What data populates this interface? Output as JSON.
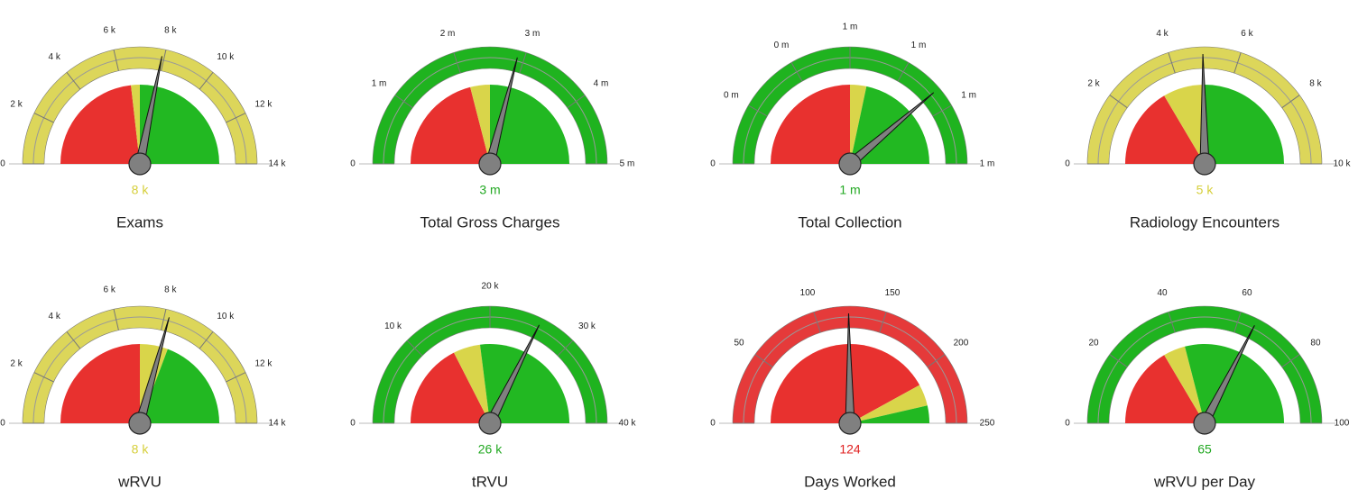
{
  "chart_data": [
    {
      "type": "gauge",
      "title": "Exams",
      "value": 7900,
      "value_label": "8 k",
      "value_color": "#d6cf3a",
      "band_color": "#dcd65a",
      "ylim": [
        0,
        14000
      ],
      "yticks": [
        0,
        {
          "value": 2000,
          "label": "2 k"
        },
        {
          "value": 4000,
          "label": "4 k"
        },
        {
          "value": 6000,
          "label": "6 k"
        },
        {
          "value": 8000,
          "label": "8 k"
        },
        {
          "value": 10000,
          "label": "10 k"
        },
        {
          "value": 12000,
          "label": "12 k"
        },
        {
          "value": 14000,
          "label": "14 k"
        }
      ],
      "zones": [
        {
          "color": "#e8312f",
          "to": 6500
        },
        {
          "color": "#d9d54a",
          "to": 7000
        },
        {
          "color": "#22b822",
          "to": 14000
        }
      ]
    },
    {
      "type": "gauge",
      "title": "Total Gross Charges",
      "value": 2900000,
      "value_label": "3 m",
      "value_color": "#22a822",
      "band_color": "#1fb31f",
      "ylim": [
        0,
        5000000
      ],
      "yticks": [
        0,
        {
          "value": 1000000,
          "label": "1 m"
        },
        {
          "value": 2000000,
          "label": "2 m"
        },
        {
          "value": 3000000,
          "label": "3 m"
        },
        {
          "value": 4000000,
          "label": "4 m"
        },
        {
          "value": 5000000,
          "label": "5 m"
        }
      ],
      "zones": [
        {
          "color": "#e8312f",
          "to": 2100000
        },
        {
          "color": "#d9d54a",
          "to": 2500000
        },
        {
          "color": "#22b822",
          "to": 5000000
        }
      ]
    },
    {
      "type": "gauge",
      "title": "Total Collection",
      "value": 930000,
      "value_label": "1 m",
      "value_color": "#22a822",
      "band_color": "#1fb31f",
      "ylim": [
        0,
        1200000
      ],
      "yticks": [
        0,
        {
          "value": 200000,
          "label": "0 m"
        },
        {
          "value": 400000,
          "label": "0 m"
        },
        {
          "value": 600000,
          "label": "1 m"
        },
        {
          "value": 800000,
          "label": "1 m"
        },
        {
          "value": 1000000,
          "label": "1 m"
        },
        {
          "value": 1200000,
          "label": "1 m"
        }
      ],
      "zones": [
        {
          "color": "#e8312f",
          "to": 600000
        },
        {
          "color": "#d9d54a",
          "to": 680000
        },
        {
          "color": "#22b822",
          "to": 1200000
        }
      ]
    },
    {
      "type": "gauge",
      "title": "Radiology Encounters",
      "value": 4950,
      "value_label": "5 k",
      "value_color": "#d6cf3a",
      "band_color": "#dcd65a",
      "ylim": [
        0,
        10000
      ],
      "yticks": [
        0,
        {
          "value": 2000,
          "label": "2 k"
        },
        {
          "value": 4000,
          "label": "4 k"
        },
        {
          "value": 6000,
          "label": "6 k"
        },
        {
          "value": 8000,
          "label": "8 k"
        },
        {
          "value": 10000,
          "label": "10 k"
        }
      ],
      "zones": [
        {
          "color": "#e8312f",
          "to": 3300
        },
        {
          "color": "#d9d54a",
          "to": 5000
        },
        {
          "color": "#22b822",
          "to": 10000
        }
      ]
    },
    {
      "type": "gauge",
      "title": "wRVU",
      "value": 8200,
      "value_label": "8 k",
      "value_color": "#d6cf3a",
      "band_color": "#dcd65a",
      "ylim": [
        0,
        14000
      ],
      "yticks": [
        0,
        {
          "value": 2000,
          "label": "2 k"
        },
        {
          "value": 4000,
          "label": "4 k"
        },
        {
          "value": 6000,
          "label": "6 k"
        },
        {
          "value": 8000,
          "label": "8 k"
        },
        {
          "value": 10000,
          "label": "10 k"
        },
        {
          "value": 12000,
          "label": "12 k"
        },
        {
          "value": 14000,
          "label": "14 k"
        }
      ],
      "zones": [
        {
          "color": "#e8312f",
          "to": 7000
        },
        {
          "color": "#d9d54a",
          "to": 8600
        },
        {
          "color": "#22b822",
          "to": 14000
        }
      ]
    },
    {
      "type": "gauge",
      "title": "tRVU",
      "value": 25900,
      "value_label": "26 k",
      "value_color": "#22a822",
      "band_color": "#1fb31f",
      "ylim": [
        0,
        40000
      ],
      "yticks": [
        0,
        {
          "value": 10000,
          "label": "10 k"
        },
        {
          "value": 20000,
          "label": "20 k"
        },
        {
          "value": 30000,
          "label": "30 k"
        },
        {
          "value": 40000,
          "label": "40 k"
        }
      ],
      "zones": [
        {
          "color": "#e8312f",
          "to": 14000
        },
        {
          "color": "#d9d54a",
          "to": 18400
        },
        {
          "color": "#22b822",
          "to": 40000
        }
      ]
    },
    {
      "type": "gauge",
      "title": "Days Worked",
      "value": 124,
      "value_color": "#e02020",
      "band_color": "#e53a3a",
      "ylim": [
        0,
        250
      ],
      "yticks": [
        0,
        50,
        100,
        150,
        200,
        250
      ],
      "zones": [
        {
          "color": "#e8312f",
          "to": 210
        },
        {
          "color": "#d9d54a",
          "to": 232
        },
        {
          "color": "#22b822",
          "to": 250
        }
      ]
    },
    {
      "type": "gauge",
      "title": "wRVU per Day",
      "value": 65,
      "value_color": "#22a822",
      "band_color": "#1fb31f",
      "ylim": [
        0,
        100
      ],
      "yticks": [
        0,
        20,
        40,
        60,
        80,
        100
      ],
      "zones": [
        {
          "color": "#e8312f",
          "to": 33
        },
        {
          "color": "#d9d54a",
          "to": 42
        },
        {
          "color": "#22b822",
          "to": 100
        }
      ]
    }
  ]
}
